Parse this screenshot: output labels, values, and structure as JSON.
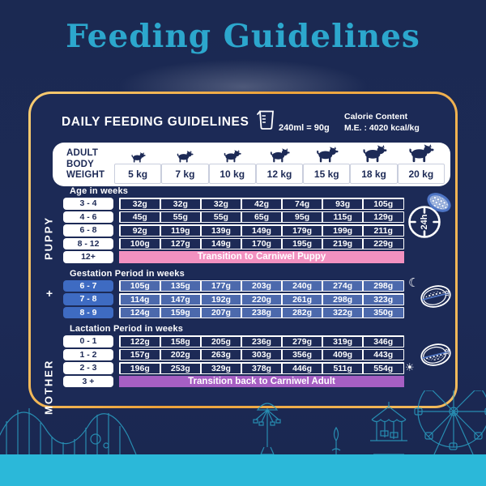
{
  "title": "Feeding Guidelines",
  "header": {
    "heading": "DAILY FEEDING GUIDELINES",
    "cup_label": "240ml = 90g",
    "calorie_title": "Calorie Content",
    "calorie_value": "M.E. : 4020 kcal/kg"
  },
  "weight_header": {
    "label_lines": [
      "ADULT",
      "BODY",
      "WEIGHT"
    ],
    "weights": [
      "5 kg",
      "7 kg",
      "10 kg",
      "12 kg",
      "15 kg",
      "18 kg",
      "20 kg"
    ]
  },
  "side_labels": {
    "puppy": "PUPPY",
    "plus": "+",
    "mother": "MOTHER"
  },
  "sections": [
    {
      "id": "puppy-age",
      "label": "Age in weeks",
      "style": "dark",
      "rows": [
        {
          "label": "3 - 4",
          "values": [
            "32g",
            "32g",
            "32g",
            "42g",
            "74g",
            "93g",
            "105g"
          ]
        },
        {
          "label": "4 - 6",
          "values": [
            "45g",
            "55g",
            "55g",
            "65g",
            "95g",
            "115g",
            "129g"
          ]
        },
        {
          "label": "6 - 8",
          "values": [
            "92g",
            "119g",
            "139g",
            "149g",
            "179g",
            "199g",
            "211g"
          ]
        },
        {
          "label": "8 - 12",
          "values": [
            "100g",
            "127g",
            "149g",
            "170g",
            "195g",
            "219g",
            "229g"
          ]
        },
        {
          "label": "12+",
          "banner": "Transition to Carniwel Puppy",
          "banner_color": "#F291C0"
        }
      ]
    },
    {
      "id": "gestation",
      "label": "Gestation Period in weeks",
      "style": "blue",
      "rows": [
        {
          "label": "6 - 7",
          "values": [
            "105g",
            "135g",
            "177g",
            "203g",
            "240g",
            "274g",
            "298g"
          ]
        },
        {
          "label": "7 - 8",
          "values": [
            "114g",
            "147g",
            "192g",
            "220g",
            "261g",
            "298g",
            "323g"
          ]
        },
        {
          "label": "8 - 9",
          "values": [
            "124g",
            "159g",
            "207g",
            "238g",
            "282g",
            "322g",
            "350g"
          ]
        }
      ]
    },
    {
      "id": "lactation",
      "label": "Lactation Period in weeks",
      "style": "dark",
      "rows": [
        {
          "label": "0 - 1",
          "values": [
            "122g",
            "158g",
            "205g",
            "236g",
            "279g",
            "319g",
            "346g"
          ]
        },
        {
          "label": "1 - 2",
          "values": [
            "157g",
            "202g",
            "263g",
            "303g",
            "356g",
            "409g",
            "443g"
          ]
        },
        {
          "label": "2 - 3",
          "values": [
            "196g",
            "253g",
            "329g",
            "378g",
            "446g",
            "511g",
            "554g"
          ]
        },
        {
          "label": "3 +",
          "banner": "Transition back to Carniwel Adult",
          "banner_color": "#A65FC3"
        }
      ]
    }
  ],
  "feeding_icons": {
    "clock_label": "24h",
    "gestation_half_label": "1/2",
    "lactation_half_label": "1/2"
  },
  "colors": {
    "background_navy": "#1C2A56",
    "title_teal": "#2CA7CD",
    "card_border_gold": "#EDA23A",
    "bottom_bar_teal": "#2BB8D9",
    "puppy_banner_pink": "#F291C0",
    "adult_banner_purple": "#A65FC3",
    "gestation_blue": "#4C69AC"
  },
  "dog_sizes": [
    13,
    15,
    16,
    18,
    20,
    22,
    23
  ]
}
